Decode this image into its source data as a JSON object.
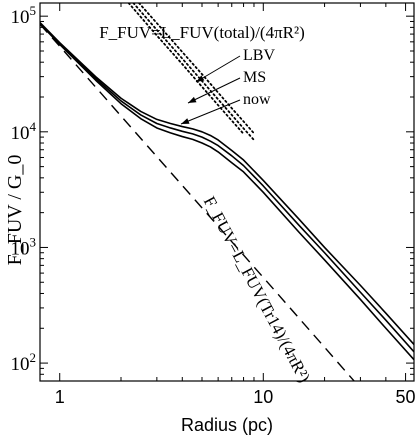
{
  "chart_data": {
    "type": "line",
    "xlabel": "Radius (pc)",
    "ylabel": "F_FUV / G_0",
    "xscale": "log",
    "yscale": "log",
    "xlim": [
      0.8,
      55
    ],
    "ylim": [
      70,
      130000
    ],
    "x_ticks": [
      {
        "value": 1,
        "label": "1"
      },
      {
        "value": 10,
        "label": "10"
      },
      {
        "value": 50,
        "label": "50"
      }
    ],
    "y_ticks": [
      {
        "value": 100,
        "label": "10",
        "exp": "2"
      },
      {
        "value": 1000,
        "label": "10",
        "exp": "3"
      },
      {
        "value": 10000,
        "label": "10",
        "exp": "4"
      },
      {
        "value": 100000,
        "label": "10",
        "exp": "5"
      }
    ],
    "grid": false,
    "annotations": {
      "total_formula": "F_FUV=L_FUV(total)/(4πR²)",
      "tr14_formula": "F_FUV=L_FUV(Tr14)/(4πR²)",
      "labels": [
        "LBV",
        "MS",
        "now"
      ]
    },
    "series": [
      {
        "name": "LBV",
        "style": "solid",
        "x": [
          0.8,
          1,
          1.5,
          2,
          2.5,
          3,
          3.5,
          4,
          4.5,
          5,
          5.5,
          6,
          7,
          8,
          10,
          15,
          20,
          30,
          40,
          55
        ],
        "y": [
          88000,
          59000,
          30000,
          19500,
          15000,
          12800,
          11800,
          11100,
          10600,
          10000,
          9300,
          8500,
          6900,
          5700,
          3800,
          1750,
          1000,
          470,
          270,
          145
        ]
      },
      {
        "name": "MS",
        "style": "solid",
        "x": [
          0.8,
          1,
          1.5,
          2,
          2.5,
          3,
          3.5,
          4,
          4.5,
          5,
          5.5,
          6,
          7,
          8,
          10,
          15,
          20,
          30,
          40,
          55
        ],
        "y": [
          87000,
          58000,
          29000,
          18500,
          14000,
          11800,
          10800,
          10100,
          9600,
          9000,
          8300,
          7600,
          6200,
          5100,
          3400,
          1550,
          900,
          410,
          235,
          125
        ]
      },
      {
        "name": "now",
        "style": "solid",
        "x": [
          0.8,
          1,
          1.5,
          2,
          2.5,
          3,
          3.5,
          4,
          4.5,
          5,
          5.5,
          6,
          7,
          8,
          10,
          15,
          20,
          30,
          40,
          55
        ],
        "y": [
          86000,
          57000,
          28000,
          17500,
          13000,
          10800,
          9800,
          9100,
          8600,
          8000,
          7400,
          6700,
          5400,
          4500,
          3000,
          1350,
          780,
          355,
          200,
          107
        ]
      },
      {
        "name": "LBV",
        "style": "dotted",
        "x": [
          2.45,
          3,
          4,
          5,
          7,
          8,
          9
        ],
        "y": [
          130000,
          87000,
          49000,
          31500,
          16000,
          12300,
          9700
        ]
      },
      {
        "name": "MS",
        "style": "dotted",
        "x": [
          2.3,
          3,
          4,
          5,
          7,
          8,
          9
        ],
        "y": [
          130000,
          76000,
          43000,
          27500,
          14000,
          10700,
          8500
        ]
      },
      {
        "name": "now",
        "style": "dotted",
        "x": [
          2.18,
          3,
          4,
          5,
          6,
          7,
          8
        ],
        "y": [
          130000,
          68000,
          38500,
          24500,
          17000,
          12500,
          9600
        ]
      },
      {
        "name": "Tr14",
        "style": "dashed",
        "x": [
          0.8,
          1,
          2,
          5,
          10,
          20,
          40
        ],
        "y": [
          85000,
          55000,
          13700,
          2200,
          550,
          137,
          34
        ]
      }
    ]
  }
}
